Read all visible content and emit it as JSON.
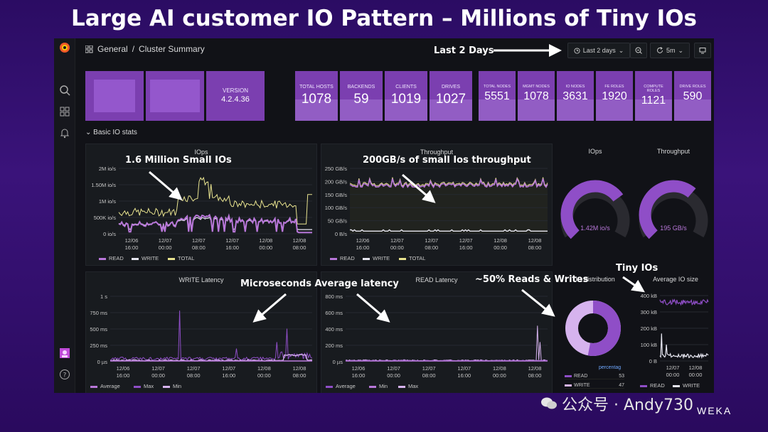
{
  "slide_title": "Large AI customer  IO Pattern – Millions of Tiny IOs",
  "breadcrumb": {
    "root": "General",
    "sep": "/",
    "page": "Cluster Summary"
  },
  "toolbar": {
    "time_range": "Last 2 days",
    "refresh": "5m"
  },
  "stats_left": {
    "version_label": "VERSION",
    "version_value": "4.2.4.36"
  },
  "stats": [
    {
      "label": "TOTAL HOSTS",
      "value": "1078"
    },
    {
      "label": "BACKENDS",
      "value": "59"
    },
    {
      "label": "CLIENTS",
      "value": "1019"
    },
    {
      "label": "DRIVES",
      "value": "1027"
    },
    {
      "label": "TOTAL NODES",
      "value": "5551"
    },
    {
      "label": "MGMT NODES",
      "value": "1078"
    },
    {
      "label": "IO NODES",
      "value": "3631"
    },
    {
      "label": "FE ROLES",
      "value": "1920"
    },
    {
      "label": "COMPUTE ROLES",
      "value": "1121"
    },
    {
      "label": "DRIVE ROLES",
      "value": "590"
    }
  ],
  "section_title": "Basic IO stats",
  "panels": {
    "iops": {
      "title": "IOps",
      "y_ticks": [
        "2M io/s",
        "1.50M io/s",
        "1M io/s",
        "500K io/s",
        "0 io/s"
      ],
      "x_ticks": [
        [
          "12/06",
          "16:00"
        ],
        [
          "12/07",
          "00:00"
        ],
        [
          "12/07",
          "08:00"
        ],
        [
          "12/07",
          "16:00"
        ],
        [
          "12/08",
          "00:00"
        ],
        [
          "12/08",
          "08:00"
        ]
      ],
      "legend": [
        "READ",
        "WRITE",
        "TOTAL"
      ]
    },
    "throughput": {
      "title": "Throughput",
      "y_ticks": [
        "250 GB/s",
        "200 GB/s",
        "150 GB/s",
        "100 GB/s",
        "50 GB/s",
        "0 B/s"
      ],
      "x_ticks": [
        [
          "12/06",
          "16:00"
        ],
        [
          "12/07",
          "00:00"
        ],
        [
          "12/07",
          "08:00"
        ],
        [
          "12/07",
          "16:00"
        ],
        [
          "12/08",
          "00:00"
        ],
        [
          "12/08",
          "08:00"
        ]
      ],
      "legend": [
        "READ",
        "WRITE",
        "TOTAL"
      ]
    },
    "iops_gauge": {
      "title": "IOps",
      "value": "1.42M io/s",
      "fraction": 0.7
    },
    "throughput_gauge": {
      "title": "Throughput",
      "value": "195 GB/s",
      "fraction": 0.65
    },
    "write_latency": {
      "title": "WRITE Latency",
      "y_ticks": [
        "1 s",
        "750 ms",
        "500 ms",
        "250 ms",
        "0 µs"
      ],
      "x_ticks": [
        [
          "12/06",
          "16:00"
        ],
        [
          "12/07",
          "00:00"
        ],
        [
          "12/07",
          "08:00"
        ],
        [
          "12/07",
          "16:00"
        ],
        [
          "12/08",
          "00:00"
        ],
        [
          "12/08",
          "08:00"
        ]
      ],
      "legend": [
        "Average",
        "Max",
        "Min"
      ]
    },
    "read_latency": {
      "title": "READ Latency",
      "y_ticks": [
        "800 ms",
        "600 ms",
        "400 ms",
        "200 ms",
        "0 µs"
      ],
      "x_ticks": [
        [
          "12/06",
          "16:00"
        ],
        [
          "12/07",
          "00:00"
        ],
        [
          "12/07",
          "08:00"
        ],
        [
          "12/07",
          "16:00"
        ],
        [
          "12/08",
          "00:00"
        ],
        [
          "12/08",
          "08:00"
        ]
      ],
      "legend": [
        "Average",
        "Min",
        "Max"
      ]
    },
    "io_distribution": {
      "title": "IO distribution",
      "header": "percentag",
      "rows": [
        {
          "label": "READ",
          "value": "53"
        },
        {
          "label": "WRITE",
          "value": "47"
        }
      ],
      "read_fraction": 0.53
    },
    "io_size": {
      "title": "Average IO size",
      "y_ticks": [
        "400 kB",
        "300 kB",
        "200 kB",
        "100 kB",
        "0 B"
      ],
      "x_ticks": [
        [
          "12/07",
          "00:00"
        ],
        [
          "12/08",
          "00:00"
        ]
      ],
      "legend": [
        "READ",
        "WRITE"
      ]
    }
  },
  "annotations": {
    "last_days": "Last 2 Days",
    "small_ios": "1.6 Million Small IOs",
    "throughput": "200GB/s of small Ios throughput",
    "latency": "Microseconds Average latency",
    "reads_writes": "~50% Reads & Writes",
    "tiny_ios": "Tiny IOs"
  },
  "watermark": {
    "text": "公众号 · Andy730",
    "brand": "WEKA"
  },
  "colors": {
    "accent": "#7b3fb0",
    "read": "#b877d9",
    "write": "#e6e6f0",
    "total": "#e8e38f",
    "panel_bg": "#181b1f"
  }
}
